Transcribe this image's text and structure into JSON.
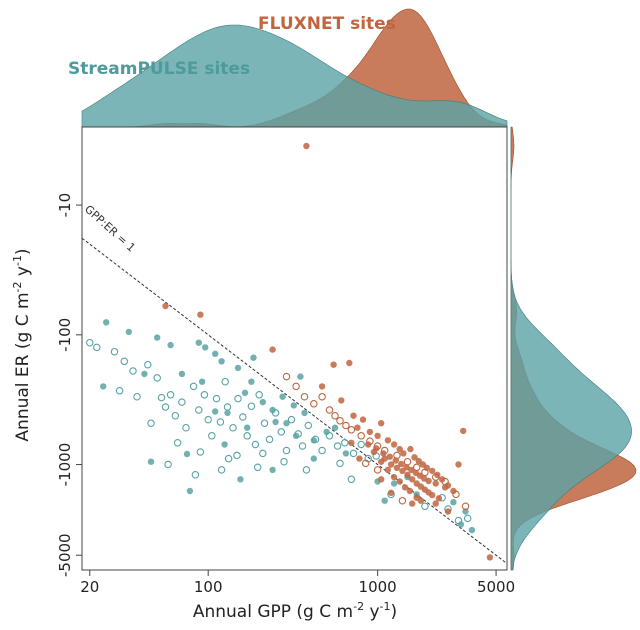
{
  "colors": {
    "streampulse": "#5aa2a5",
    "fluxnet": "#c0653f",
    "axis": "#444444",
    "one_to_one": "#333333"
  },
  "chart_data": {
    "type": "scatter",
    "title": "",
    "xlabel": {
      "main": "Annual GPP (g C m",
      "sup1": "-2",
      "mid": " y",
      "sup2": "-1",
      "end": ")"
    },
    "ylabel": {
      "main": "Annual ER (g C m",
      "sup1": "-2",
      "mid": " y",
      "sup2": "-1",
      "end": ")"
    },
    "x_scale": "log",
    "y_scale": "log (negative values)",
    "xlim": [
      18,
      5800
    ],
    "ylim": [
      -2.5,
      -6500
    ],
    "x_ticks": [
      20,
      100,
      1000,
      5000
    ],
    "x_tick_labels": [
      "20",
      "100",
      "1000",
      "5000"
    ],
    "y_ticks": [
      -10,
      -100,
      -1000,
      -5000
    ],
    "y_tick_labels": [
      "-10",
      "-100",
      "-1000",
      "-5000"
    ],
    "grid": false,
    "reference_line": {
      "label": "GPP:ER = 1",
      "x": [
        18,
        5800
      ],
      "y": [
        -18,
        -5800
      ]
    },
    "legend": [
      {
        "name": "StreamPULSE sites",
        "placement": "top-left"
      },
      {
        "name": "FLUXNET sites",
        "placement": "top-right"
      }
    ],
    "series": [
      {
        "name": "StreamPULSE sites",
        "marker": "filled",
        "points": [
          [
            25,
            -80
          ],
          [
            34,
            -95
          ],
          [
            24,
            -250
          ],
          [
            42,
            -200
          ],
          [
            50,
            -105
          ],
          [
            60,
            -120
          ],
          [
            70,
            -200
          ],
          [
            88,
            -115
          ],
          [
            96,
            -125
          ],
          [
            92,
            -230
          ],
          [
            110,
            -140
          ],
          [
            120,
            -160
          ],
          [
            130,
            -400
          ],
          [
            150,
            -180
          ],
          [
            165,
            -280
          ],
          [
            185,
            -150
          ],
          [
            210,
            -330
          ],
          [
            240,
            -380
          ],
          [
            275,
            -300
          ],
          [
            290,
            -480
          ],
          [
            320,
            -350
          ],
          [
            330,
            -600
          ],
          [
            370,
            -400
          ],
          [
            420,
            -650
          ],
          [
            500,
            -560
          ],
          [
            560,
            -520
          ],
          [
            170,
            -520
          ],
          [
            125,
            -700
          ],
          [
            240,
            -1100
          ],
          [
            420,
            -900
          ],
          [
            650,
            -820
          ],
          [
            46,
            -950
          ],
          [
            75,
            -830
          ],
          [
            250,
            -470
          ],
          [
            110,
            -390
          ],
          [
            350,
            -210
          ],
          [
            180,
            -230
          ],
          [
            78,
            -1600
          ],
          [
            155,
            -1300
          ],
          [
            1000,
            -1350
          ],
          [
            1100,
            -1900
          ],
          [
            1700,
            -1700
          ],
          [
            1250,
            -1400
          ],
          [
            1500,
            -1250
          ],
          [
            2800,
            -1950
          ],
          [
            3300,
            -2300
          ],
          [
            3100,
            -2900
          ],
          [
            3600,
            -3200
          ]
        ]
      },
      {
        "name": "StreamPULSE sites",
        "marker": "open",
        "points": [
          [
            20,
            -115
          ],
          [
            22,
            -125
          ],
          [
            28,
            -135
          ],
          [
            32,
            -160
          ],
          [
            36,
            -190
          ],
          [
            30,
            -270
          ],
          [
            38,
            -300
          ],
          [
            44,
            -170
          ],
          [
            50,
            -215
          ],
          [
            53,
            -305
          ],
          [
            60,
            -290
          ],
          [
            64,
            -420
          ],
          [
            70,
            -330
          ],
          [
            74,
            -520
          ],
          [
            82,
            -250
          ],
          [
            88,
            -380
          ],
          [
            95,
            -290
          ],
          [
            100,
            -450
          ],
          [
            105,
            -600
          ],
          [
            112,
            -310
          ],
          [
            118,
            -470
          ],
          [
            126,
            -230
          ],
          [
            130,
            -360
          ],
          [
            140,
            -520
          ],
          [
            150,
            -310
          ],
          [
            160,
            -430
          ],
          [
            170,
            -600
          ],
          [
            180,
            -355
          ],
          [
            190,
            -700
          ],
          [
            200,
            -290
          ],
          [
            215,
            -480
          ],
          [
            230,
            -640
          ],
          [
            250,
            -400
          ],
          [
            270,
            -560
          ],
          [
            290,
            -780
          ],
          [
            310,
            -450
          ],
          [
            340,
            -580
          ],
          [
            360,
            -720
          ],
          [
            390,
            -500
          ],
          [
            430,
            -640
          ],
          [
            470,
            -780
          ],
          [
            520,
            -600
          ],
          [
            580,
            -720
          ],
          [
            640,
            -680
          ],
          [
            720,
            -820
          ],
          [
            800,
            -700
          ],
          [
            880,
            -900
          ],
          [
            980,
            -860
          ],
          [
            56,
            -360
          ],
          [
            66,
            -680
          ],
          [
            90,
            -800
          ],
          [
            132,
            -900
          ],
          [
            196,
            -1050
          ],
          [
            280,
            -950
          ],
          [
            58,
            -1000
          ],
          [
            84,
            -1200
          ],
          [
            120,
            -1100
          ],
          [
            148,
            -850
          ],
          [
            210,
            -820
          ],
          [
            2600,
            -2200
          ],
          [
            3000,
            -2700
          ],
          [
            3400,
            -2600
          ],
          [
            2400,
            -1800
          ],
          [
            1200,
            -1700
          ],
          [
            1900,
            -2100
          ],
          [
            380,
            -1100
          ],
          [
            600,
            -980
          ],
          [
            700,
            -1300
          ],
          [
            46,
            -480
          ]
        ]
      },
      {
        "name": "FLUXNET sites",
        "marker": "filled",
        "points": [
          [
            380,
            -3.5
          ],
          [
            56,
            -60
          ],
          [
            90,
            -70
          ],
          [
            240,
            -130
          ],
          [
            550,
            -170
          ],
          [
            680,
            -165
          ],
          [
            470,
            -250
          ],
          [
            610,
            -320
          ],
          [
            720,
            -420
          ],
          [
            820,
            -450
          ],
          [
            760,
            -520
          ],
          [
            900,
            -560
          ],
          [
            1000,
            -600
          ],
          [
            1050,
            -480
          ],
          [
            1150,
            -650
          ],
          [
            1250,
            -700
          ],
          [
            1350,
            -760
          ],
          [
            1420,
            -820
          ],
          [
            1560,
            -760
          ],
          [
            1650,
            -880
          ],
          [
            1750,
            -940
          ],
          [
            1850,
            -1000
          ],
          [
            1950,
            -1060
          ],
          [
            2100,
            -1120
          ],
          [
            2250,
            -1200
          ],
          [
            2400,
            -1300
          ],
          [
            2600,
            -1450
          ],
          [
            1100,
            -900
          ],
          [
            1200,
            -1000
          ],
          [
            1300,
            -1060
          ],
          [
            1400,
            -1120
          ],
          [
            1500,
            -1200
          ],
          [
            1600,
            -1300
          ],
          [
            1700,
            -1400
          ],
          [
            1800,
            -1480
          ],
          [
            1900,
            -1560
          ],
          [
            2000,
            -1640
          ],
          [
            2100,
            -1720
          ],
          [
            2300,
            -1820
          ],
          [
            950,
            -800
          ],
          [
            1050,
            -950
          ],
          [
            1150,
            -1100
          ],
          [
            1250,
            -1250
          ],
          [
            1350,
            -1350
          ],
          [
            1450,
            -1500
          ],
          [
            1550,
            -1600
          ],
          [
            1700,
            -1800
          ],
          [
            1800,
            -1900
          ],
          [
            880,
            -700
          ],
          [
            980,
            -750
          ],
          [
            1080,
            -820
          ],
          [
            1180,
            -870
          ],
          [
            1280,
            -930
          ],
          [
            1380,
            -990
          ],
          [
            1480,
            -1050
          ],
          [
            1580,
            -1100
          ],
          [
            1680,
            -1160
          ],
          [
            1780,
            -1220
          ],
          [
            1880,
            -1280
          ],
          [
            2000,
            -1340
          ],
          [
            2200,
            -1400
          ],
          [
            2500,
            -1500
          ],
          [
            2800,
            -1600
          ],
          [
            3000,
            -1000
          ],
          [
            3200,
            -550
          ],
          [
            2200,
            -2000
          ],
          [
            2600,
            -2300
          ],
          [
            1200,
            -1650
          ],
          [
            1600,
            -2000
          ],
          [
            1050,
            -1300
          ],
          [
            780,
            -900
          ],
          [
            700,
            -680
          ],
          [
            4600,
            -5200
          ]
        ]
      },
      {
        "name": "FLUXNET sites",
        "marker": "open",
        "points": [
          [
            290,
            -210
          ],
          [
            330,
            -250
          ],
          [
            370,
            -300
          ],
          [
            420,
            -340
          ],
          [
            470,
            -300
          ],
          [
            520,
            -380
          ],
          [
            560,
            -420
          ],
          [
            600,
            -460
          ],
          [
            650,
            -500
          ],
          [
            700,
            -540
          ],
          [
            800,
            -600
          ],
          [
            900,
            -660
          ],
          [
            1000,
            -720
          ],
          [
            1100,
            -780
          ],
          [
            1300,
            -850
          ],
          [
            1500,
            -950
          ],
          [
            1700,
            -1050
          ],
          [
            1900,
            -1150
          ],
          [
            2200,
            -1250
          ],
          [
            2500,
            -1350
          ],
          [
            2900,
            -1700
          ],
          [
            3300,
            -2100
          ],
          [
            1400,
            -1900
          ],
          [
            1000,
            -1100
          ],
          [
            850,
            -980
          ]
        ]
      }
    ]
  }
}
